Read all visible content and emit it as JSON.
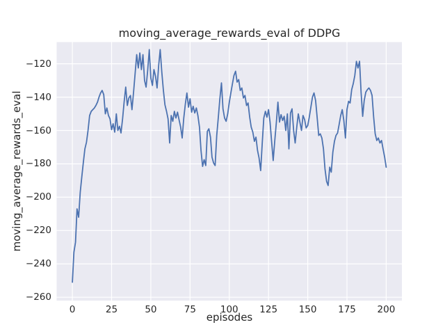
{
  "figure": {
    "title": "moving_average_rewards_eval of DDPG"
  },
  "chart_data": {
    "type": "line",
    "title": "moving_average_rewards_eval of DDPG",
    "xlabel": "episodes",
    "ylabel": "moving_average_rewards_eval",
    "legend": "none",
    "grid": true,
    "plot_bg": "#EAEAF2",
    "grid_color": "#FFFFFF",
    "line_color": "#4C72B0",
    "xlim": [
      -10,
      210
    ],
    "ylim": [
      -262,
      -107
    ],
    "xticks": [
      0,
      25,
      50,
      75,
      100,
      125,
      150,
      175,
      200
    ],
    "yticks": [
      -260,
      -240,
      -220,
      -200,
      -180,
      -160,
      -140,
      -120
    ],
    "x_start": 0,
    "x_step": 1,
    "values": [
      -251,
      -233,
      -227,
      -207,
      -212,
      -197,
      -188,
      -179,
      -171,
      -167,
      -160,
      -151,
      -148.5,
      -147.5,
      -146.5,
      -145,
      -143,
      -140,
      -137.5,
      -136,
      -138.5,
      -150,
      -146.5,
      -151,
      -153,
      -159.5,
      -156,
      -161,
      -150,
      -160,
      -157.5,
      -161.5,
      -153,
      -143,
      -134,
      -145,
      -140.5,
      -139,
      -147.5,
      -137,
      -126,
      -114.5,
      -122.5,
      -113.5,
      -123.5,
      -114.5,
      -130,
      -134,
      -124,
      -111.5,
      -128.5,
      -133,
      -123.5,
      -127.5,
      -134.5,
      -121,
      -111.5,
      -125,
      -136,
      -144.5,
      -148.5,
      -153,
      -167.5,
      -151,
      -154.5,
      -148.5,
      -152.5,
      -149,
      -153.5,
      -158,
      -164.5,
      -152.5,
      -144,
      -137.5,
      -146,
      -141,
      -149,
      -145.5,
      -149.5,
      -146.5,
      -151,
      -158,
      -172,
      -181.5,
      -177.5,
      -181,
      -160.5,
      -159,
      -164,
      -176,
      -179.5,
      -181,
      -163,
      -152,
      -141,
      -131.5,
      -147,
      -152.5,
      -154.5,
      -150,
      -143,
      -137.5,
      -132,
      -127,
      -124.5,
      -131,
      -129.5,
      -136,
      -134.5,
      -140.5,
      -139,
      -145,
      -143.5,
      -152,
      -158,
      -161,
      -166.5,
      -164,
      -172,
      -176.5,
      -184,
      -168,
      -152.5,
      -148.5,
      -152,
      -147.5,
      -155,
      -167,
      -178,
      -166,
      -155,
      -143,
      -155,
      -150.5,
      -154,
      -151.5,
      -160,
      -150,
      -171,
      -149.5,
      -147,
      -160,
      -167.5,
      -158,
      -150,
      -155,
      -160,
      -151,
      -153.5,
      -158.5,
      -157,
      -152,
      -146,
      -140,
      -137.5,
      -142,
      -152,
      -163,
      -162,
      -164.5,
      -171,
      -183,
      -190.5,
      -193,
      -182,
      -185,
      -173,
      -166.5,
      -163,
      -161.5,
      -156.5,
      -151,
      -147.5,
      -154,
      -164.5,
      -147.5,
      -142.5,
      -143.5,
      -135.5,
      -132,
      -127,
      -118.5,
      -122.5,
      -118.5,
      -137,
      -151.5,
      -142,
      -137,
      -135.5,
      -134.5,
      -136,
      -139,
      -152,
      -162,
      -166,
      -164.5,
      -167.5,
      -166,
      -171,
      -176,
      -182
    ]
  }
}
